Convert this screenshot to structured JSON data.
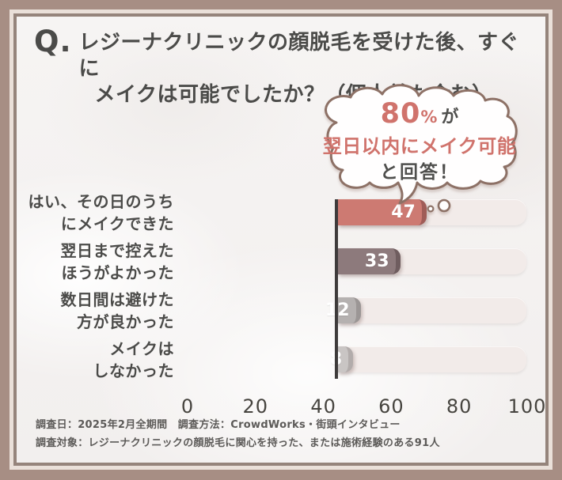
{
  "frame": {
    "outer_color": "#a78e84",
    "cream_line_color": "#eae0d9",
    "inner_border_color": "#95847b",
    "card_bg_color": "#f5f3f2"
  },
  "title": {
    "q_label": "Q.",
    "line1": "レジーナクリニックの顔脱毛を受けた後、すぐに",
    "line2": "メイクは可能でしたか？（個人差も含む）"
  },
  "bubble": {
    "value": "80",
    "percent_sign": "%",
    "suffix": "が",
    "line2": "翌日以内にメイク可能",
    "line3": "と回答！",
    "accent_color": "#d0736c",
    "border_color": "#8d7166",
    "fill_color": "#fffefe"
  },
  "chart_data": {
    "type": "bar",
    "orientation": "horizontal",
    "title": "",
    "xlabel": "",
    "ylabel": "",
    "xlim": [
      0,
      100
    ],
    "grid": false,
    "x_ticks": [
      "0",
      "20",
      "40",
      "60",
      "80",
      "100"
    ],
    "categories": [
      "はい、その日のうちにメイクできた",
      "翌日まで控えたほうがよかった",
      "数日間は避けた方が良かった",
      "メイクはしなかった"
    ],
    "category_lines": [
      [
        "はい、その日のうち",
        "にメイクできた"
      ],
      [
        "翌日まで控えた",
        "ほうがよかった"
      ],
      [
        "数日間は避けた",
        "方が良かった"
      ],
      [
        "メイクは",
        "しなかった"
      ]
    ],
    "values": [
      47,
      33,
      12,
      8
    ],
    "colors": [
      "#cd7a72",
      "#8d7a7c",
      "#b5b1b0",
      "#c9c5c4"
    ],
    "edge_colors": [
      "#a05c57",
      "#6f5d5f",
      "#9b9695",
      "#b2acab"
    ],
    "track_color": "#f2ebe9",
    "axis_line_color": "#3e3b3b"
  },
  "footer": {
    "line1": "調査日：2025年2月全期間　調査方法：CrowdWorks・街頭インタビュー",
    "line2": "調査対象：レジーナクリニックの顔脱毛に関心を持った、または施術経験のある91人"
  }
}
